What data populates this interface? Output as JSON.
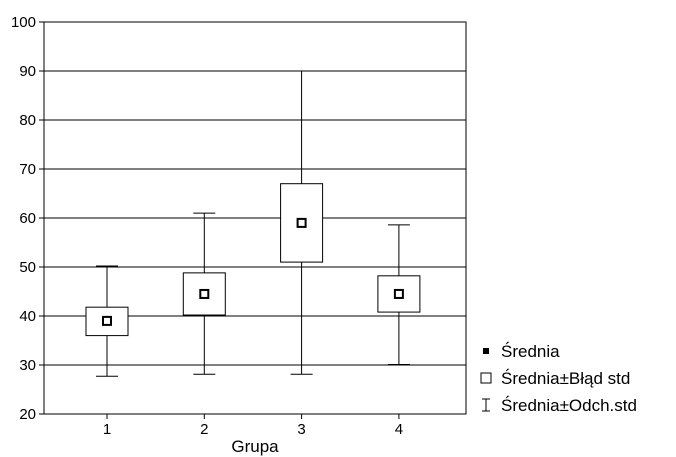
{
  "chart_data": {
    "type": "box",
    "xlabel": "Grupa",
    "ylabel": "",
    "ylim": [
      20,
      100
    ],
    "yticks": [
      20,
      30,
      40,
      50,
      60,
      70,
      80,
      90,
      100
    ],
    "categories": [
      "1",
      "2",
      "3",
      "4"
    ],
    "grid": "horizontal",
    "legend_position": "right-bottom",
    "series": [
      {
        "category": "1",
        "mean": 39,
        "se_low": 36,
        "se_high": 41.8,
        "sd_low": 27.7,
        "sd_high": 50.2
      },
      {
        "category": "2",
        "mean": 44.5,
        "se_low": 40.2,
        "se_high": 48.8,
        "sd_low": 28.1,
        "sd_high": 61
      },
      {
        "category": "3",
        "mean": 59,
        "se_low": 51,
        "se_high": 67,
        "sd_low": 28.1,
        "sd_high": 90
      },
      {
        "category": "4",
        "mean": 44.5,
        "se_low": 40.8,
        "se_high": 48.2,
        "sd_low": 30.1,
        "sd_high": 58.6
      }
    ],
    "legend": [
      {
        "symbol": "mean-marker",
        "label": "Średnia"
      },
      {
        "symbol": "box",
        "label": "Średnia±Błąd std"
      },
      {
        "symbol": "whisker",
        "label": "Średnia±Odch.std"
      }
    ]
  }
}
